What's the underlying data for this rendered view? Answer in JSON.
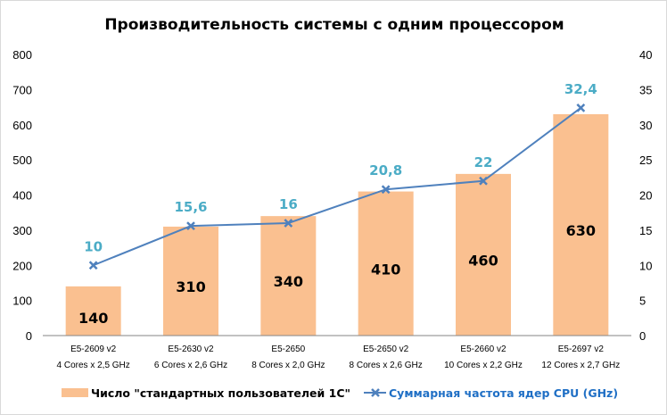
{
  "chart_data": {
    "type": "bar+line",
    "title": "Производительность системы с одним процессором",
    "categories": [
      [
        "E5-2609 v2",
        "4 Cores x 2,5 GHz"
      ],
      [
        "E5-2630 v2",
        "6 Cores x 2,6 GHz"
      ],
      [
        "E5-2650",
        "8 Cores x 2,0 GHz"
      ],
      [
        "E5-2650 v2",
        "8 Cores x 2,6 GHz"
      ],
      [
        "E5-2660 v2",
        "10 Cores x 2,2 GHz"
      ],
      [
        "E5-2697 v2",
        "12 Cores x 2,7 GHz"
      ]
    ],
    "series": [
      {
        "name": "Число \"стандартных пользователей 1С\"",
        "type": "bar",
        "axis": "left",
        "color": "#FAC090",
        "values": [
          140,
          310,
          340,
          410,
          460,
          630
        ],
        "labels": [
          "140",
          "310",
          "340",
          "410",
          "460",
          "630"
        ]
      },
      {
        "name": "Суммарная частота ядер CPU (GHz)",
        "type": "line",
        "axis": "right",
        "color": "#4F81BD",
        "label_color": "#4BACC6",
        "marker": "x",
        "values": [
          10,
          15.6,
          16,
          20.8,
          22,
          32.4
        ],
        "labels": [
          "10",
          "15,6",
          "16",
          "20,8",
          "22",
          "32,4"
        ]
      }
    ],
    "y_left": {
      "range": [
        0,
        800
      ],
      "ticks": [
        "0",
        "100",
        "200",
        "300",
        "400",
        "500",
        "600",
        "700",
        "800"
      ]
    },
    "y_right": {
      "range": [
        0,
        40
      ],
      "ticks": [
        "0",
        "5",
        "10",
        "15",
        "20",
        "25",
        "30",
        "35",
        "40"
      ]
    },
    "grid": false,
    "legend_placement": "bottom"
  }
}
